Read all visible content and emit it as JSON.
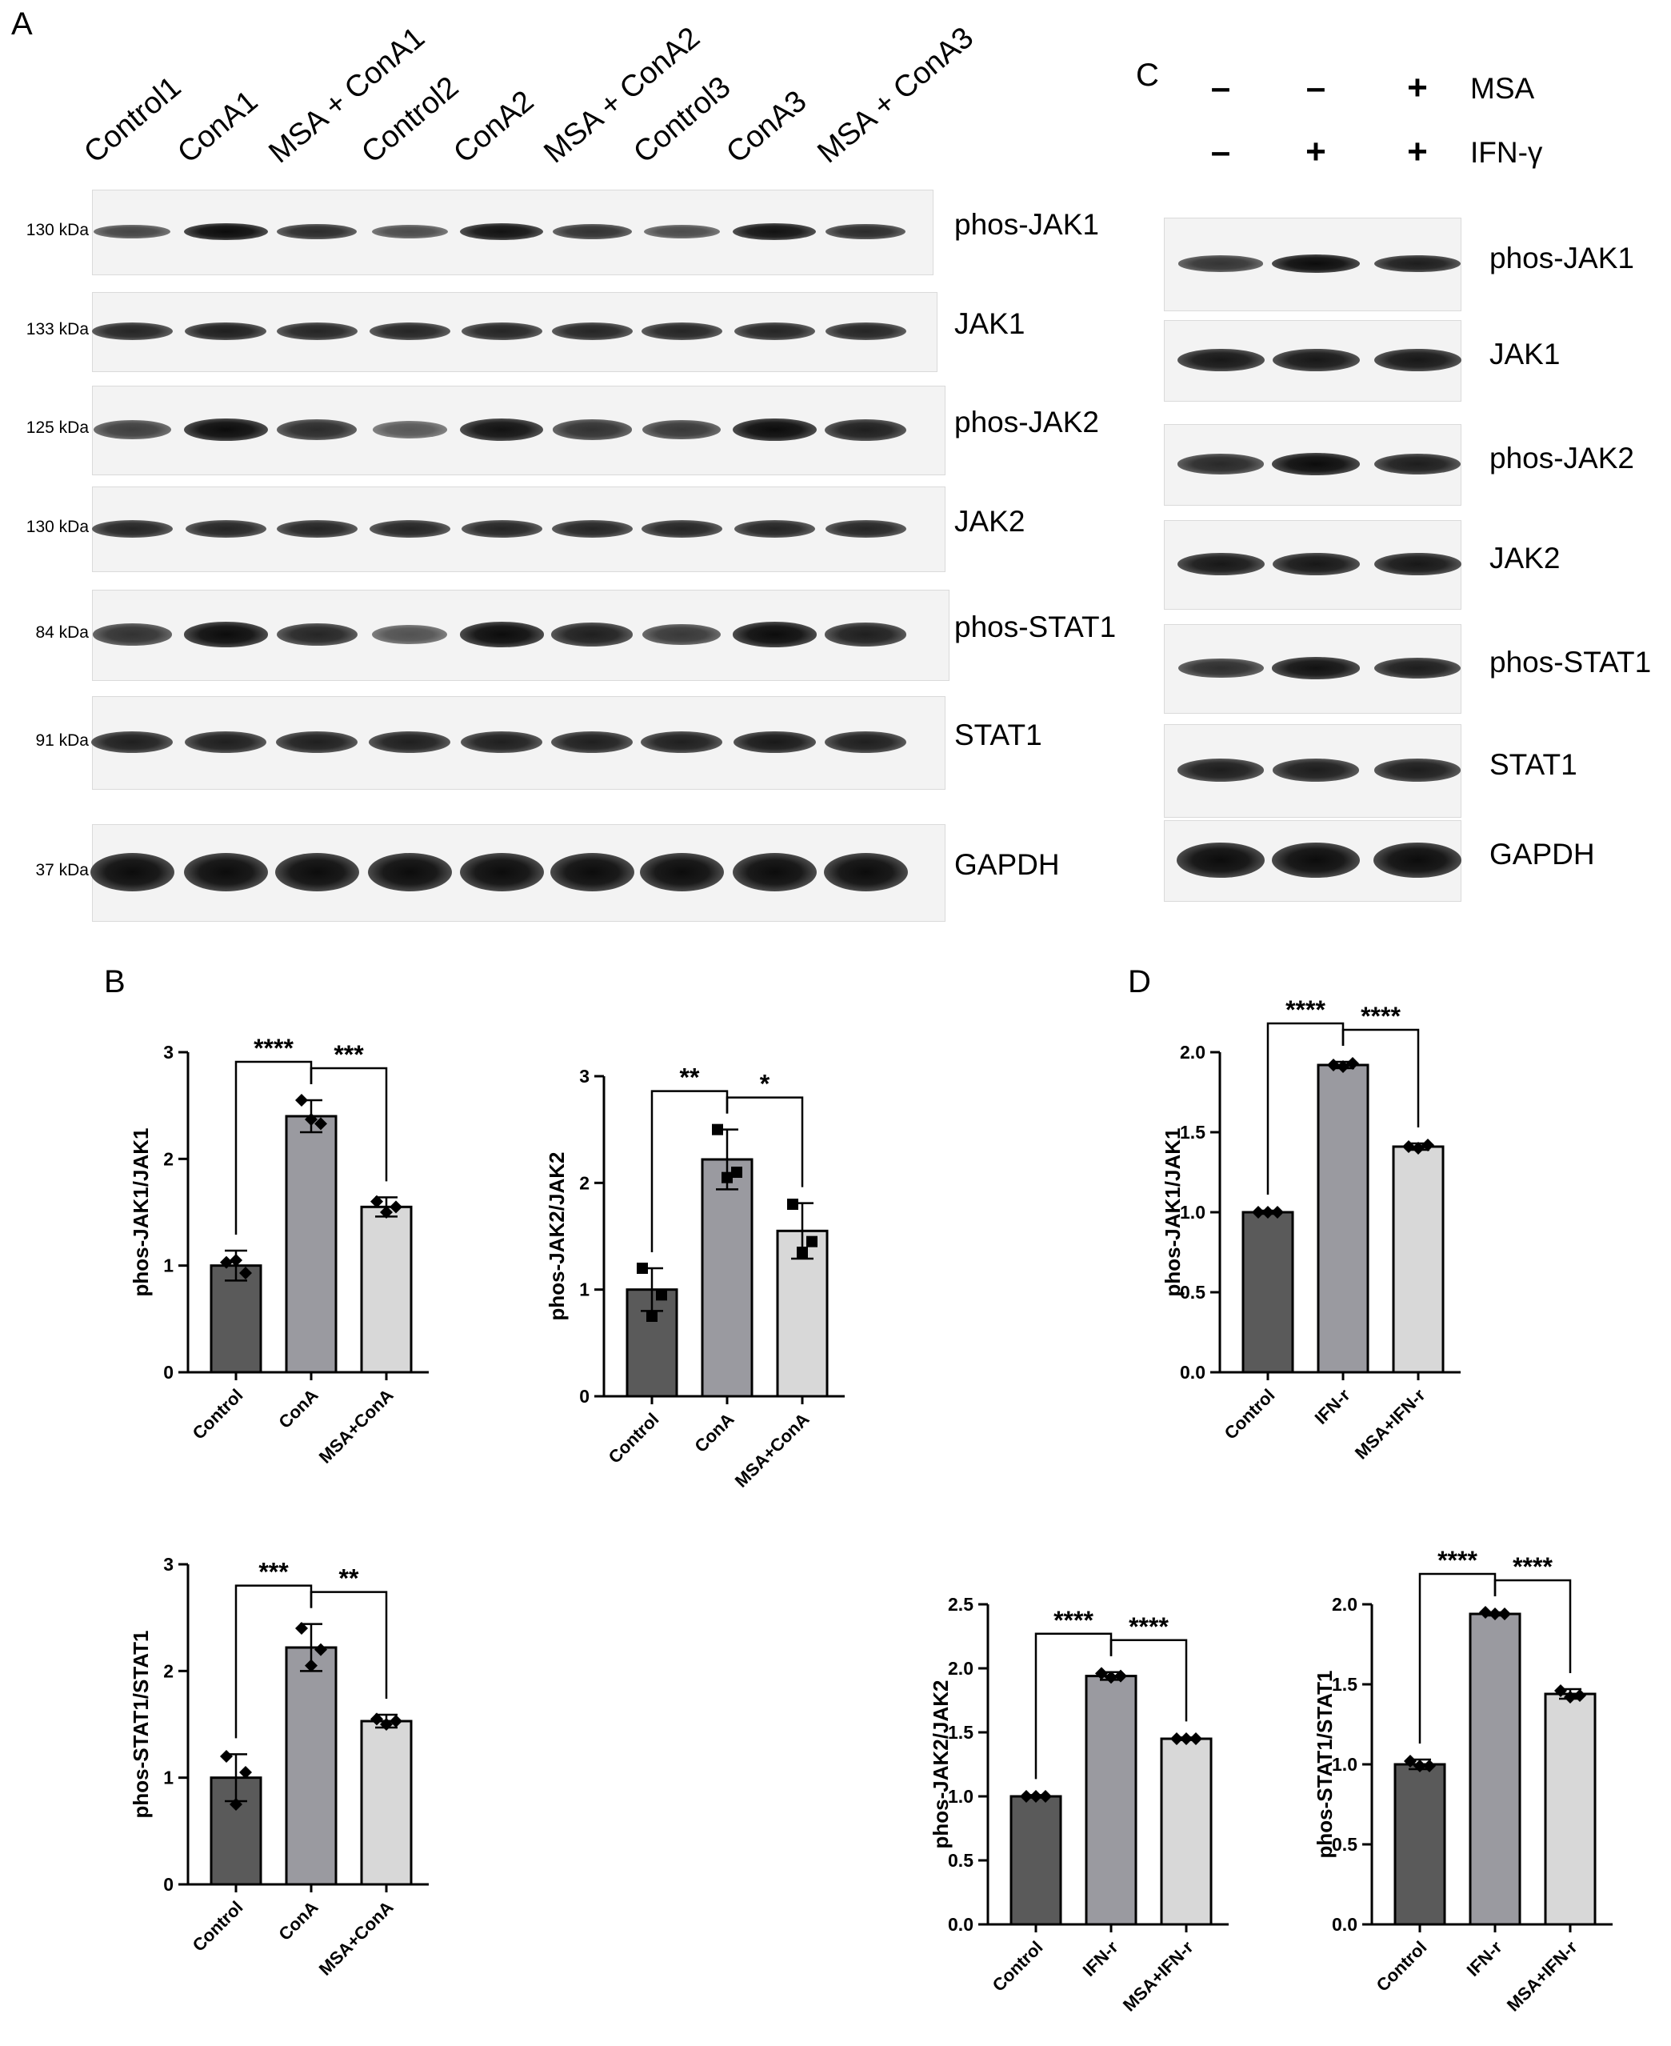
{
  "panels": {
    "a": "A",
    "b": "B",
    "c": "C",
    "d": "D"
  },
  "panel_a": {
    "lanes": [
      "Control1",
      "ConA1",
      "MSA + ConA1",
      "Control2",
      "ConA2",
      "MSA + ConA2",
      "Control3",
      "ConA3",
      "MSA + ConA3"
    ],
    "rows": [
      {
        "mw": "130 kDa",
        "protein": "phos-JAK1",
        "intensity": [
          0.55,
          1.0,
          0.75,
          0.5,
          0.95,
          0.7,
          0.5,
          0.95,
          0.75
        ]
      },
      {
        "mw": "133 kDa",
        "protein": "JAK1",
        "intensity": [
          0.8,
          0.85,
          0.8,
          0.8,
          0.8,
          0.8,
          0.8,
          0.8,
          0.8
        ]
      },
      {
        "mw": "125 kDa",
        "protein": "phos-JAK2",
        "intensity": [
          0.6,
          1.0,
          0.75,
          0.4,
          0.95,
          0.7,
          0.65,
          1.0,
          0.85
        ]
      },
      {
        "mw": "130 kDa",
        "protein": "JAK2",
        "intensity": [
          0.8,
          0.8,
          0.8,
          0.8,
          0.8,
          0.8,
          0.8,
          0.8,
          0.8
        ]
      },
      {
        "mw": "84 kDa",
        "protein": "phos-STAT1",
        "intensity": [
          0.7,
          1.0,
          0.8,
          0.45,
          1.0,
          0.85,
          0.65,
          1.0,
          0.85
        ]
      },
      {
        "mw": "91 kDa",
        "protein": "STAT1",
        "intensity": [
          0.85,
          0.85,
          0.85,
          0.85,
          0.85,
          0.85,
          0.85,
          0.9,
          0.85
        ]
      },
      {
        "mw": "37 kDa",
        "protein": "GAPDH",
        "intensity": [
          1.0,
          1.0,
          1.0,
          1.0,
          1.0,
          1.0,
          1.0,
          1.0,
          1.0
        ]
      }
    ]
  },
  "panel_c": {
    "treatments": [
      {
        "label": "MSA",
        "signs": [
          "–",
          "–",
          "+"
        ]
      },
      {
        "label": "IFN-γ",
        "signs": [
          "–",
          "+",
          "+"
        ]
      }
    ],
    "rows": [
      {
        "protein": "phos-JAK1",
        "intensity": [
          0.65,
          1.0,
          0.85
        ]
      },
      {
        "protein": "JAK1",
        "intensity": [
          0.9,
          0.9,
          0.9
        ]
      },
      {
        "protein": "phos-JAK2",
        "intensity": [
          0.75,
          1.0,
          0.85
        ]
      },
      {
        "protein": "JAK2",
        "intensity": [
          0.9,
          0.9,
          0.9
        ]
      },
      {
        "protein": "phos-STAT1",
        "intensity": [
          0.7,
          0.95,
          0.85
        ]
      },
      {
        "protein": "STAT1",
        "intensity": [
          0.85,
          0.85,
          0.85
        ]
      },
      {
        "protein": "GAPDH",
        "intensity": [
          1.0,
          1.0,
          1.0
        ]
      }
    ]
  },
  "chart_data": [
    {
      "panel": "B",
      "type": "bar",
      "ylabel": "phos-JAK1/JAK1",
      "categories": [
        "Control",
        "ConA",
        "MSA+ConA"
      ],
      "values": [
        1.0,
        2.4,
        1.55
      ],
      "errors": [
        0.14,
        0.15,
        0.09
      ],
      "points": [
        [
          1.03,
          0.93,
          1.05
        ],
        [
          2.55,
          2.33,
          2.37
        ],
        [
          1.6,
          1.55,
          1.5
        ]
      ],
      "marker": "diamond",
      "ylim": [
        0,
        3
      ],
      "yticks": [
        0,
        1,
        2,
        3
      ],
      "significance": [
        {
          "from": 0,
          "to": 1,
          "label": "****"
        },
        {
          "from": 1,
          "to": 2,
          "label": "***"
        }
      ]
    },
    {
      "panel": "B",
      "type": "bar",
      "ylabel": "phos-JAK2/JAK2",
      "categories": [
        "Control",
        "ConA",
        "MSA+ConA"
      ],
      "values": [
        1.0,
        2.22,
        1.55
      ],
      "errors": [
        0.2,
        0.28,
        0.26
      ],
      "points": [
        [
          1.2,
          0.95,
          0.75
        ],
        [
          2.5,
          2.1,
          2.05
        ],
        [
          1.8,
          1.45,
          1.35
        ]
      ],
      "marker": "square",
      "ylim": [
        0,
        3
      ],
      "yticks": [
        0,
        1,
        2,
        3
      ],
      "significance": [
        {
          "from": 0,
          "to": 1,
          "label": "**"
        },
        {
          "from": 1,
          "to": 2,
          "label": "*"
        }
      ]
    },
    {
      "panel": "B",
      "type": "bar",
      "ylabel": "phos-STAT1/STAT1",
      "categories": [
        "Control",
        "ConA",
        "MSA+ConA"
      ],
      "values": [
        1.0,
        2.22,
        1.53
      ],
      "errors": [
        0.22,
        0.22,
        0.06
      ],
      "points": [
        [
          1.2,
          1.05,
          0.75
        ],
        [
          2.4,
          2.2,
          2.05
        ],
        [
          1.55,
          1.53,
          1.5
        ]
      ],
      "marker": "diamond",
      "ylim": [
        0,
        3
      ],
      "yticks": [
        0,
        1,
        2,
        3
      ],
      "significance": [
        {
          "from": 0,
          "to": 1,
          "label": "***"
        },
        {
          "from": 1,
          "to": 2,
          "label": "**"
        }
      ]
    },
    {
      "panel": "D",
      "type": "bar",
      "ylabel": "phos-JAK1/JAK1",
      "categories": [
        "Control",
        "IFN-r",
        "MSA+IFN-r"
      ],
      "values": [
        1.0,
        1.92,
        1.41
      ],
      "errors": [
        0.01,
        0.02,
        0.02
      ],
      "points": [
        [
          1.0,
          1.0,
          1.0
        ],
        [
          1.92,
          1.93,
          1.91
        ],
        [
          1.41,
          1.42,
          1.4
        ]
      ],
      "marker": "diamond",
      "ylim": [
        0,
        2
      ],
      "yticks": [
        0.0,
        0.5,
        1.0,
        1.5,
        2.0
      ],
      "significance": [
        {
          "from": 0,
          "to": 1,
          "label": "****"
        },
        {
          "from": 1,
          "to": 2,
          "label": "****"
        }
      ]
    },
    {
      "panel": "D",
      "type": "bar",
      "ylabel": "phos-JAK2/JAK2",
      "categories": [
        "Control",
        "IFN-r",
        "MSA+IFN-r"
      ],
      "values": [
        1.0,
        1.94,
        1.45
      ],
      "errors": [
        0.01,
        0.03,
        0.01
      ],
      "points": [
        [
          1.0,
          1.0,
          1.0
        ],
        [
          1.96,
          1.94,
          1.93
        ],
        [
          1.45,
          1.45,
          1.45
        ]
      ],
      "marker": "diamond",
      "ylim": [
        0,
        2.5
      ],
      "yticks": [
        0.0,
        0.5,
        1.0,
        1.5,
        2.0,
        2.5
      ],
      "significance": [
        {
          "from": 0,
          "to": 1,
          "label": "****"
        },
        {
          "from": 1,
          "to": 2,
          "label": "****"
        }
      ]
    },
    {
      "panel": "D",
      "type": "bar",
      "ylabel": "phos-STAT1/STAT1",
      "categories": [
        "Control",
        "IFN-r",
        "MSA+IFN-r"
      ],
      "values": [
        1.0,
        1.94,
        1.44
      ],
      "errors": [
        0.03,
        0.01,
        0.03
      ],
      "points": [
        [
          1.02,
          0.99,
          0.99
        ],
        [
          1.95,
          1.94,
          1.94
        ],
        [
          1.46,
          1.43,
          1.42
        ]
      ],
      "marker": "diamond",
      "ylim": [
        0,
        2
      ],
      "yticks": [
        0.0,
        0.5,
        1.0,
        1.5,
        2.0
      ],
      "significance": [
        {
          "from": 0,
          "to": 1,
          "label": "****"
        },
        {
          "from": 1,
          "to": 2,
          "label": "****"
        }
      ]
    }
  ]
}
